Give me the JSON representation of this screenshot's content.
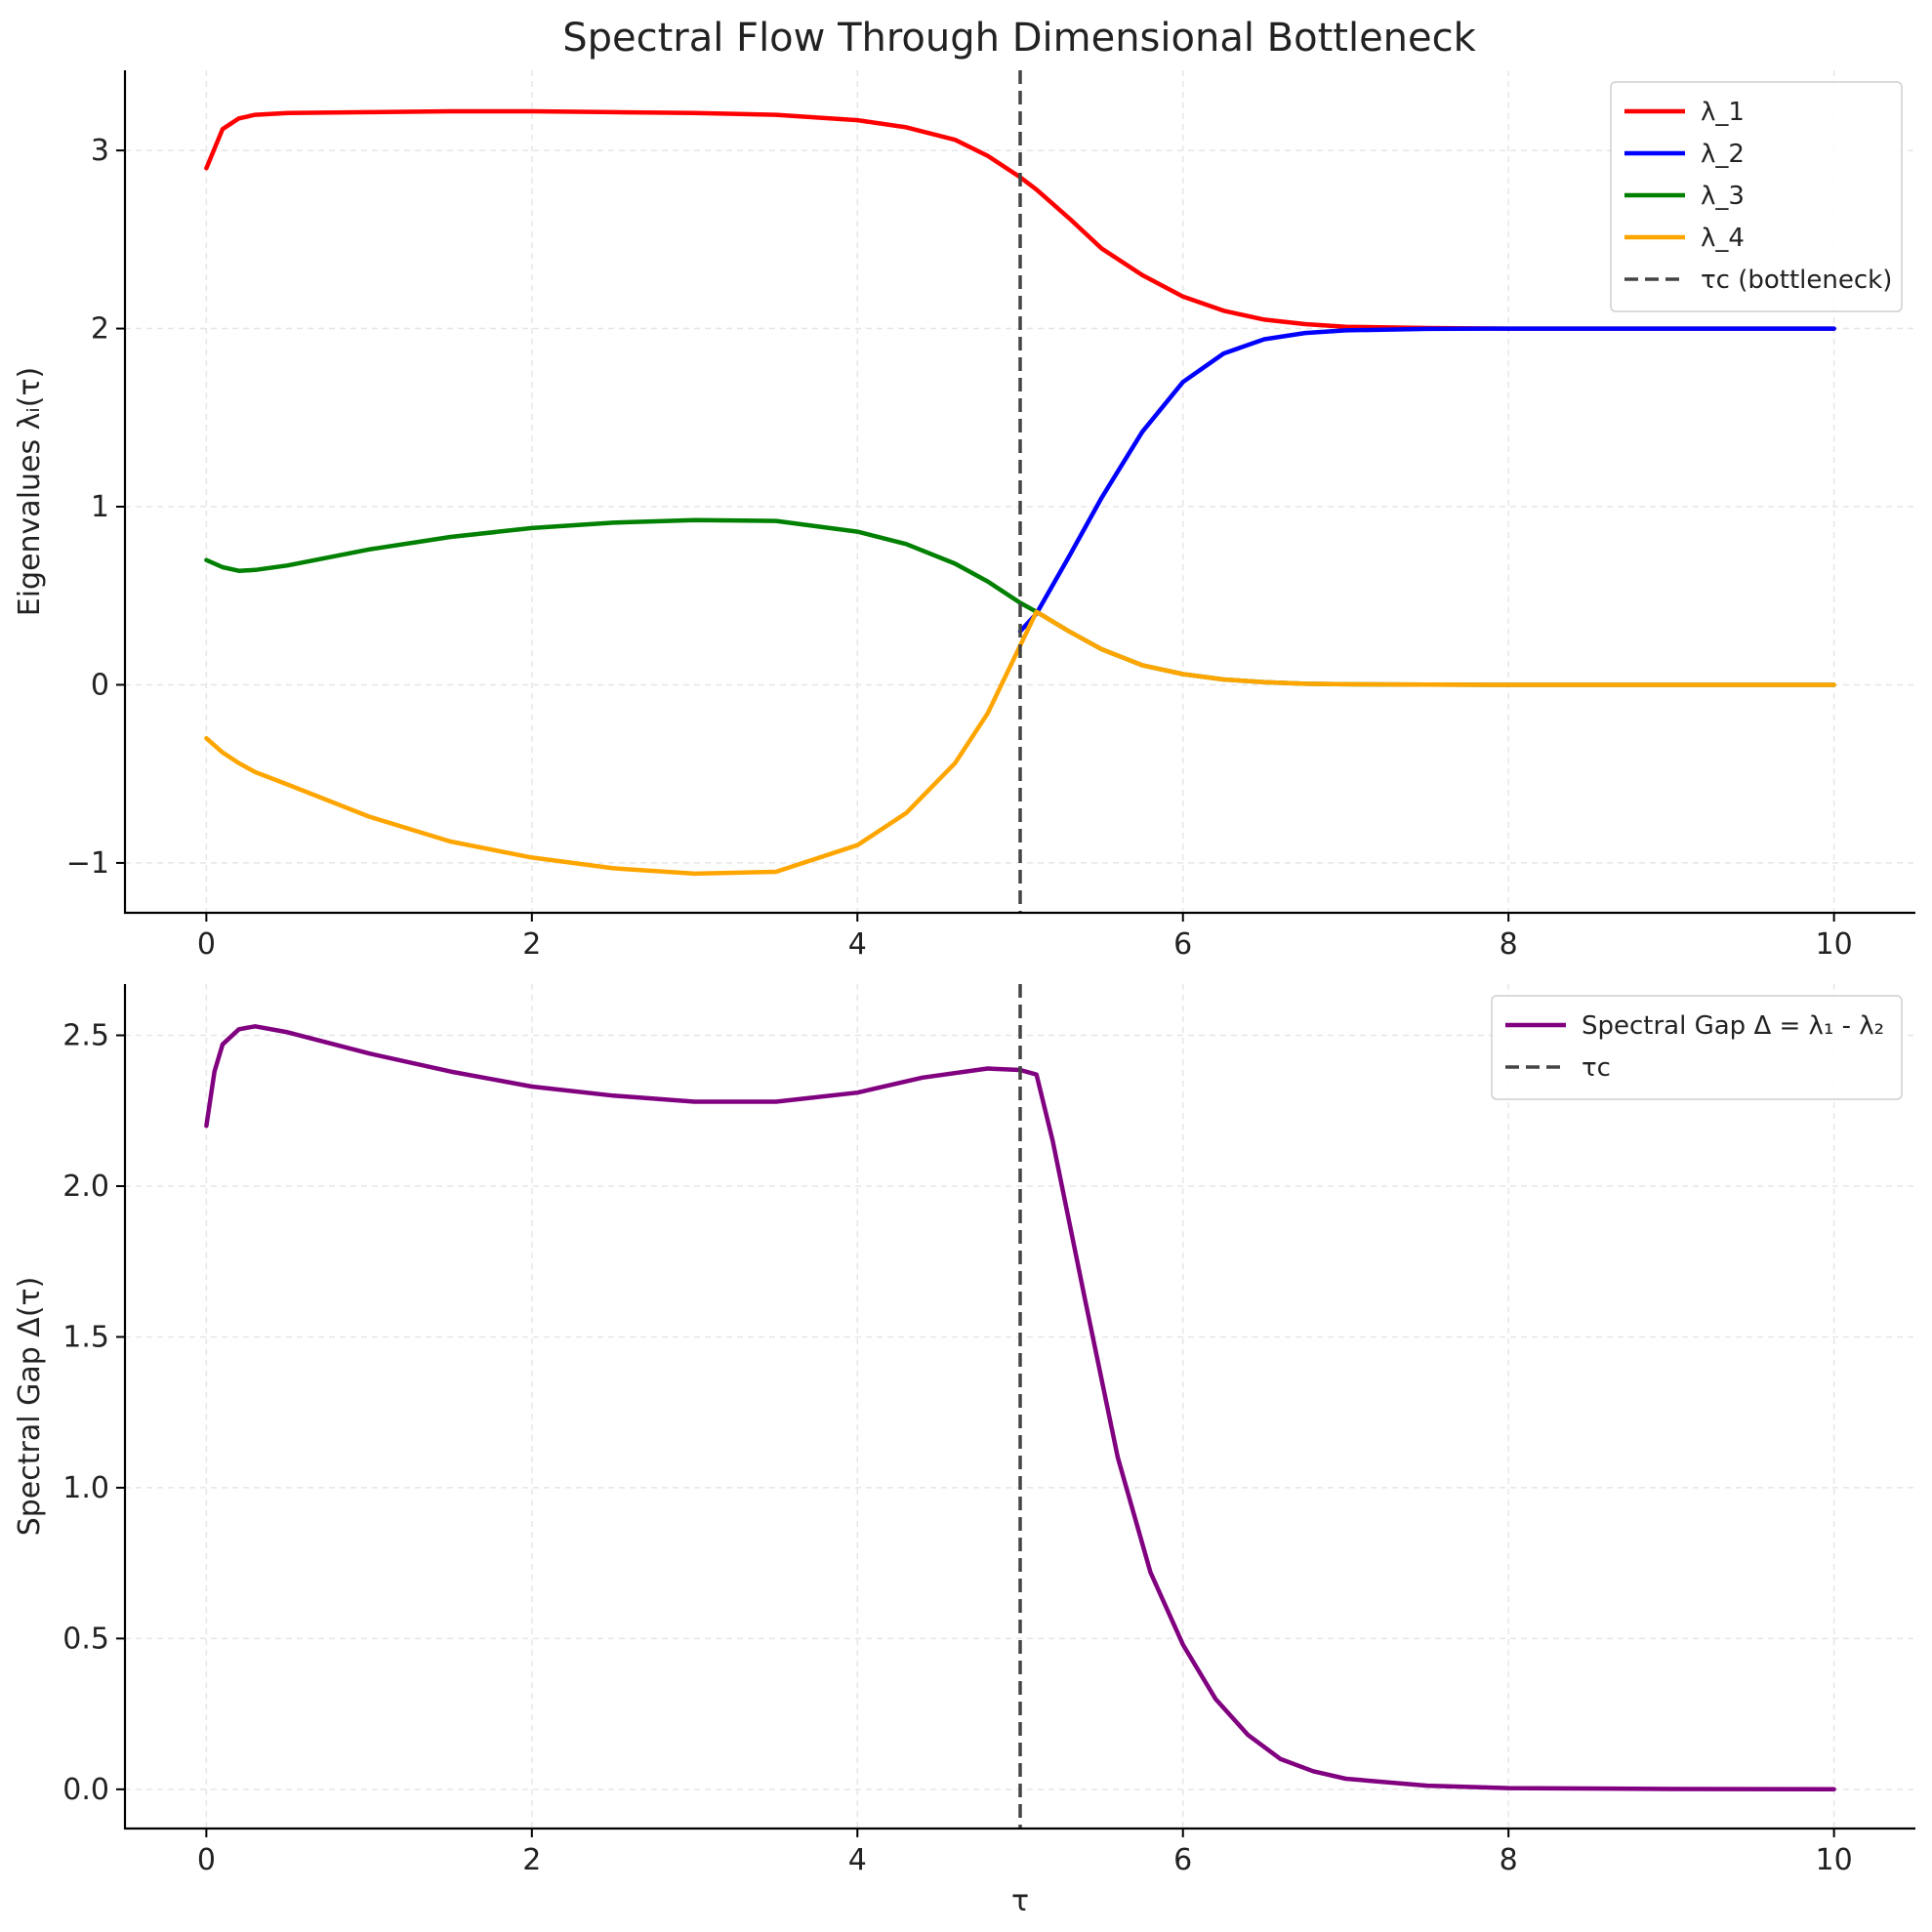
{
  "figure": {
    "title": "Spectral Flow Through Dimensional Bottleneck"
  },
  "chart_data": [
    {
      "type": "line",
      "title": "Spectral Flow Through Dimensional Bottleneck",
      "xlabel": "",
      "ylabel": "Eigenvalues λᵢ(τ)",
      "xlim": [
        -0.5,
        10.5
      ],
      "ylim": [
        -1.28,
        3.45
      ],
      "xticks": [
        0,
        2,
        4,
        6,
        8,
        10
      ],
      "yticks": [
        -1,
        0,
        1,
        2,
        3
      ],
      "ytick_labels": [
        "−1",
        "0",
        "1",
        "2",
        "3"
      ],
      "grid": true,
      "legend_position": "top-right",
      "x": [
        0,
        0.1,
        0.2,
        0.3,
        0.5,
        1.0,
        1.5,
        2.0,
        2.5,
        3.0,
        3.5,
        4.0,
        4.3,
        4.6,
        4.8,
        5.0,
        5.1,
        5.3,
        5.5,
        5.75,
        6.0,
        6.25,
        6.5,
        6.75,
        7.0,
        7.5,
        8.0,
        9.0,
        10.0
      ],
      "series": [
        {
          "name": "λ_1",
          "color": "#ff0000",
          "values": [
            2.9,
            3.12,
            3.18,
            3.2,
            3.21,
            3.215,
            3.22,
            3.22,
            3.215,
            3.21,
            3.2,
            3.17,
            3.13,
            3.06,
            2.97,
            2.85,
            2.78,
            2.62,
            2.45,
            2.3,
            2.18,
            2.1,
            2.05,
            2.025,
            2.01,
            2.003,
            2.0,
            2.0,
            2.0
          ]
        },
        {
          "name": "λ_2",
          "color": "#0000ff",
          "values": [
            null,
            null,
            null,
            null,
            null,
            null,
            null,
            null,
            null,
            null,
            null,
            null,
            null,
            null,
            null,
            0.3,
            0.4,
            0.72,
            1.05,
            1.42,
            1.7,
            1.86,
            1.94,
            1.975,
            1.99,
            1.998,
            2.0,
            2.0,
            2.0
          ]
        },
        {
          "name": "λ_3",
          "color": "#008000",
          "values": [
            0.7,
            0.66,
            0.64,
            0.645,
            0.67,
            0.76,
            0.83,
            0.88,
            0.91,
            0.925,
            0.92,
            0.86,
            0.79,
            0.68,
            0.58,
            0.46,
            0.41,
            0.3,
            0.2,
            0.11,
            0.06,
            0.03,
            0.015,
            0.006,
            0.003,
            0.001,
            0.0,
            0.0,
            0.0
          ]
        },
        {
          "name": "λ_4",
          "color": "#ffa500",
          "values": [
            -0.3,
            -0.38,
            -0.44,
            -0.49,
            -0.56,
            -0.74,
            -0.88,
            -0.97,
            -1.03,
            -1.06,
            -1.05,
            -0.9,
            -0.72,
            -0.44,
            -0.16,
            0.22,
            0.41,
            0.3,
            0.2,
            0.11,
            0.06,
            0.03,
            0.015,
            0.006,
            0.003,
            0.001,
            0.0,
            0.0,
            0.0
          ]
        }
      ],
      "vline": {
        "x": 5.0,
        "name": "τc (bottleneck)",
        "color": "#444444"
      }
    },
    {
      "type": "line",
      "xlabel": "τ",
      "ylabel": "Spectral Gap Δ(τ)",
      "xlim": [
        -0.5,
        10.5
      ],
      "ylim": [
        -0.13,
        2.67
      ],
      "xticks": [
        0,
        2,
        4,
        6,
        8,
        10
      ],
      "yticks": [
        0.0,
        0.5,
        1.0,
        1.5,
        2.0,
        2.5
      ],
      "ytick_labels": [
        "0.0",
        "0.5",
        "1.0",
        "1.5",
        "2.0",
        "2.5"
      ],
      "grid": true,
      "legend_position": "top-right",
      "x": [
        0,
        0.05,
        0.1,
        0.2,
        0.3,
        0.5,
        1.0,
        1.5,
        2.0,
        2.5,
        3.0,
        3.5,
        4.0,
        4.4,
        4.8,
        5.0,
        5.1,
        5.2,
        5.4,
        5.6,
        5.8,
        6.0,
        6.2,
        6.4,
        6.6,
        6.8,
        7.0,
        7.5,
        8.0,
        9.0,
        10.0
      ],
      "series": [
        {
          "name": "Spectral Gap Δ = λ₁ - λ₂",
          "color": "#800080",
          "values": [
            2.2,
            2.38,
            2.47,
            2.52,
            2.53,
            2.51,
            2.44,
            2.38,
            2.33,
            2.3,
            2.28,
            2.28,
            2.31,
            2.36,
            2.39,
            2.385,
            2.37,
            2.15,
            1.62,
            1.1,
            0.72,
            0.48,
            0.3,
            0.18,
            0.1,
            0.06,
            0.035,
            0.012,
            0.004,
            0.001,
            0.0
          ]
        }
      ],
      "vline": {
        "x": 5.0,
        "name": "τc",
        "color": "#444444"
      }
    }
  ]
}
